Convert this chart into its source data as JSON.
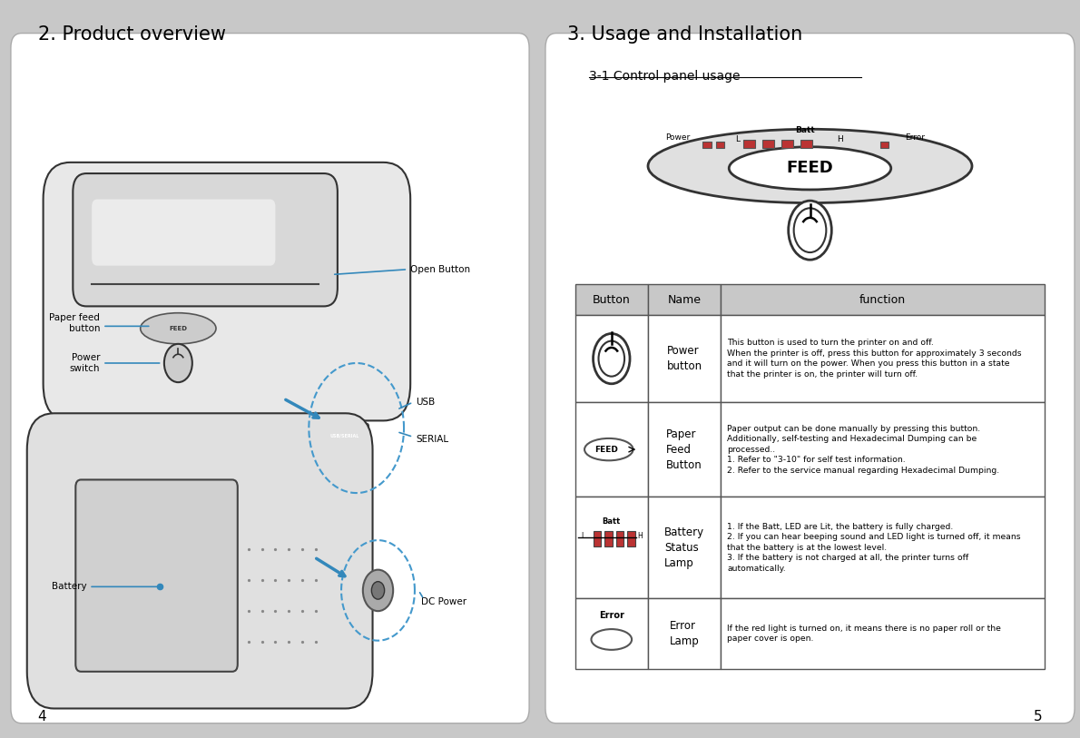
{
  "bg_color": "#c8c8c8",
  "panel_bg": "#ffffff",
  "left_title": "2. Product overview",
  "right_title": "3. Usage and Installation",
  "subtitle": "3-1 Control panel usage",
  "page_left": "4",
  "page_right": "5",
  "table_header": [
    "Button",
    "Name",
    "function"
  ],
  "table_header_bg": "#c8c8c8",
  "table_rows": [
    {
      "button_icon": "power",
      "name": "Power\nbutton",
      "function": "This button is used to turn the printer on and off.\nWhen the printer is off, press this button for approximately 3 seconds\nand it will turn on the power. When you press this button in a state\nthat the printer is on, the printer will turn off."
    },
    {
      "button_icon": "feed",
      "name": "Paper\nFeed\nButton",
      "function": "Paper output can be done manually by pressing this button.\nAdditionally, self-testing and Hexadecimal Dumping can be\nprocessed..\n1. Refer to \"3-10\" for self test information.\n2. Refer to the service manual regarding Hexadecimal Dumping."
    },
    {
      "button_icon": "battery",
      "name": "Battery\nStatus\nLamp",
      "function": "1. If the Batt, LED are Lit, the battery is fully charged.\n2. If you can hear beeping sound and LED light is turned off, it means\nthat the battery is at the lowest level.\n3. If the battery is not charged at all, the printer turns off\nautomatically."
    },
    {
      "button_icon": "error",
      "name": "Error\nLamp",
      "function": "If the red light is turned on, it means there is no paper roll or the\npaper cover is open."
    }
  ]
}
